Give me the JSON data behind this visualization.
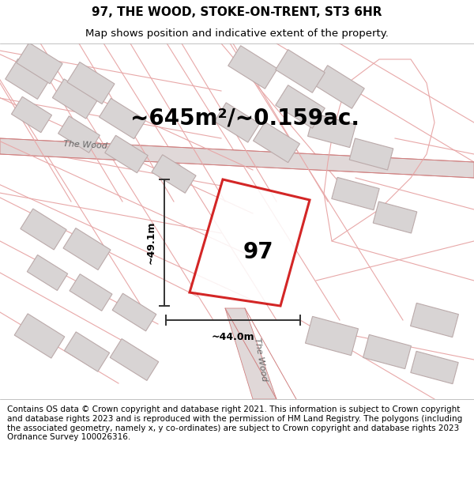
{
  "title": "97, THE WOOD, STOKE-ON-TRENT, ST3 6HR",
  "subtitle": "Map shows position and indicative extent of the property.",
  "area_label": "~645m²/~0.159ac.",
  "property_number": "97",
  "dim_height": "~49.1m",
  "dim_width": "~44.0m",
  "road_label_diag": "The Wood",
  "road_label_vert": "The Wood",
  "background_color": "#ffffff",
  "map_background": "#f8f4f4",
  "property_fill": "none",
  "property_edge": "#cc0000",
  "building_fill": "#d8d4d4",
  "building_edge": "#bbaaaa",
  "light_line_color": "#e8a8a8",
  "medium_line_color": "#d08080",
  "footer_text": "Contains OS data © Crown copyright and database right 2021. This information is subject to Crown copyright and database rights 2023 and is reproduced with the permission of HM Land Registry. The polygons (including the associated geometry, namely x, y co-ordinates) are subject to Crown copyright and database rights 2023 Ordnance Survey 100026316.",
  "title_fontsize": 11,
  "subtitle_fontsize": 9.5,
  "footer_fontsize": 7.5,
  "area_fontsize": 20,
  "number_fontsize": 20,
  "dim_fontsize": 9,
  "road_label_fontsize": 8
}
